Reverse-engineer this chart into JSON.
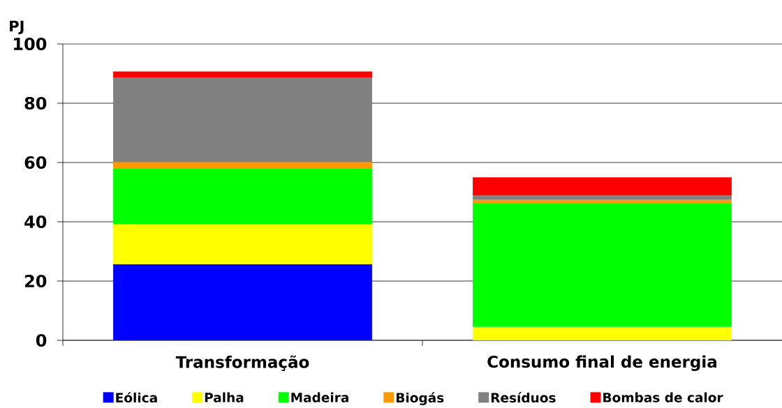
{
  "chart_data": {
    "type": "bar",
    "ylabel": "PJ",
    "categories": [
      "Transformação",
      "Consumo final de energia"
    ],
    "series": [
      {
        "name": "Eólica",
        "color": "#0000ff",
        "values": [
          25.7,
          null
        ]
      },
      {
        "name": "Palha",
        "color": "#ffff00",
        "values": [
          13.5,
          4.5
        ]
      },
      {
        "name": "Madeira",
        "color": "#00ff00",
        "values": [
          18.7,
          41.6
        ]
      },
      {
        "name": "Biogás",
        "color": "#ff9900",
        "values": [
          2.3,
          1.3
        ]
      },
      {
        "name": "Resíduos",
        "color": "#808080",
        "values": [
          28.5,
          1.5
        ]
      },
      {
        "name": "Bombas de calor",
        "color": "#ff0000",
        "values": [
          2.0,
          6.1
        ]
      }
    ],
    "stacked": true,
    "ylim": [
      0,
      100
    ],
    "yticks": [
      0,
      20,
      40,
      60,
      80,
      100
    ],
    "grid": "y",
    "legend": "bottom"
  }
}
